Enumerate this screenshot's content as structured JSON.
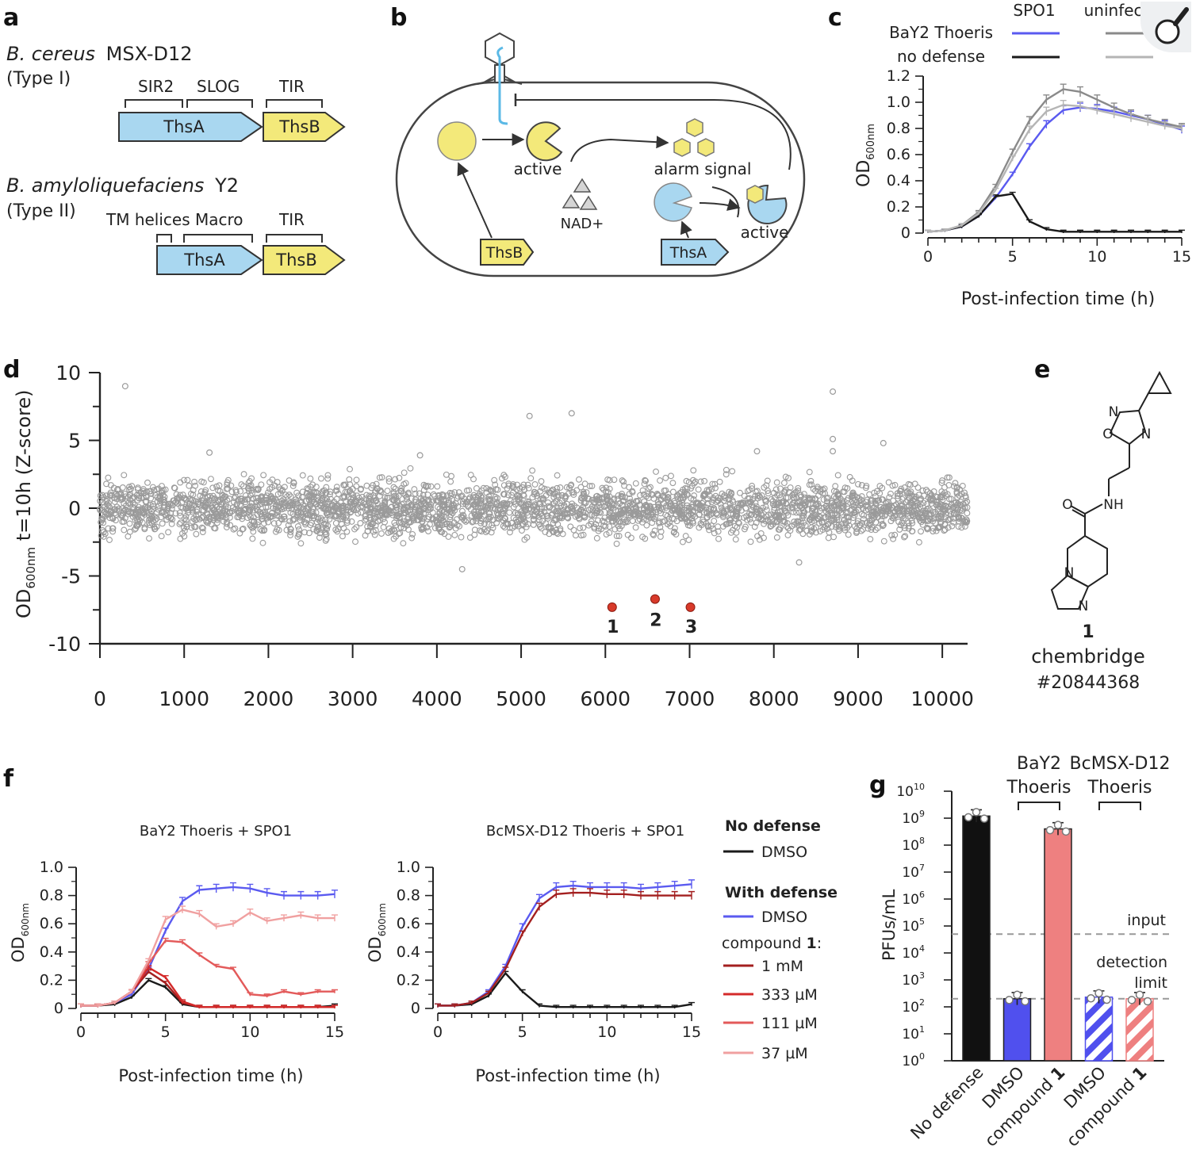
{
  "panels": {
    "a": {
      "label": "a",
      "org1_species": "B. cereus",
      "org1_strain": "MSX-D12",
      "org1_type": "(Type I)",
      "org1_domains": [
        "SIR2",
        "SLOG",
        "TIR"
      ],
      "org2_species": "B. amyloliquefaciens",
      "org2_strain": "Y2",
      "org2_type": "(Type II)",
      "org2_domains": [
        "TM helices",
        "Macro",
        "TIR"
      ],
      "gene_a": "ThsA",
      "gene_b": "ThsB"
    },
    "b": {
      "label": "b",
      "active_1": "active",
      "alarm": "alarm signal",
      "nad": "NAD+",
      "active_2": "active",
      "thsb": "ThsB",
      "thsa": "ThsA"
    },
    "c": {
      "label": "c",
      "legend_col1": "SPO1",
      "legend_col2": "uninfected",
      "legend_row1": "BaY2 Thoeris",
      "legend_row2": "no defense",
      "ylabel": "OD",
      "ylabel_sub": "600nm",
      "xlabel": "Post-infection time (h)"
    },
    "d": {
      "label": "d",
      "ylabel_main": "OD",
      "ylabel_sub": "600nm",
      "ylabel_rest": " t=10h (Z-score)",
      "hit_labels": [
        "1",
        "2",
        "3"
      ]
    },
    "e": {
      "label": "e",
      "compound_number": "1",
      "vendor": "chembridge",
      "catalog": "#20844368",
      "atoms": [
        "N",
        "O",
        "N",
        "NH",
        "O",
        "N",
        "N"
      ]
    },
    "f": {
      "label": "f",
      "title_left": "BaY2 Thoeris + SPO1",
      "title_right": "BcMSX-D12 Thoeris + SPO1",
      "ylabel": "OD",
      "ylabel_sub": "600nm",
      "xlabel": "Post-infection time (h)",
      "legend_head1": "No defense",
      "legend_dmso1": "DMSO",
      "legend_head2": "With defense",
      "legend_dmso2": "DMSO",
      "legend_compound": "compound",
      "legend_compound_num": "1",
      "legend_compound_colon": ":",
      "legend_doses": [
        "1 mM",
        "333 µM",
        "111 µM",
        "37 µM"
      ]
    },
    "g": {
      "label": "g",
      "group1_l1": "BaY2",
      "group1_l2": "Thoeris",
      "group2_l1": "BcMSX-D12",
      "group2_l2": "Thoeris",
      "ylabel": "PFUs/mL",
      "input_label": "input",
      "detect_l1": "detection",
      "detect_l2": "limit"
    }
  },
  "colors": {
    "dark": "#1a1a1a",
    "blue": "#5a5af0",
    "gray": "#8a8a8a",
    "lightgray": "#b5b5b5",
    "red_dark": "#a31f1f",
    "red": "#d42a2a",
    "red_mid": "#e35a5a",
    "red_light": "#f0a0a0",
    "ths_blue": "#a9d7f0",
    "ths_yellow": "#f3e97a"
  },
  "chart_data": [
    {
      "id": "c",
      "type": "line",
      "title": "",
      "xlabel": "Post-infection time (h)",
      "ylabel": "OD600nm",
      "xlim": [
        0,
        15
      ],
      "ylim": [
        0,
        1.2
      ],
      "xticks": [
        0,
        5,
        10,
        15
      ],
      "yticks": [
        0,
        0.2,
        0.4,
        0.6,
        0.8,
        1.0,
        1.2
      ],
      "x": [
        0,
        1,
        2,
        3,
        4,
        5,
        6,
        7,
        8,
        9,
        10,
        11,
        12,
        13,
        14,
        15
      ],
      "series": [
        {
          "name": "BaY2 Thoeris + SPO1",
          "color": "#5a5af0",
          "values": [
            0.01,
            0.02,
            0.05,
            0.13,
            0.27,
            0.45,
            0.66,
            0.83,
            0.94,
            0.96,
            0.95,
            0.93,
            0.9,
            0.87,
            0.83,
            0.79
          ]
        },
        {
          "name": "no defense + SPO1",
          "color": "#1a1a1a",
          "values": [
            0.01,
            0.02,
            0.05,
            0.13,
            0.28,
            0.3,
            0.09,
            0.03,
            0.01,
            0.01,
            0.01,
            0.01,
            0.01,
            0.01,
            0.01,
            0.01
          ]
        },
        {
          "name": "BaY2 Thoeris uninfected",
          "color": "#8a8a8a",
          "values": [
            0.01,
            0.02,
            0.06,
            0.16,
            0.36,
            0.62,
            0.86,
            1.02,
            1.1,
            1.08,
            1.02,
            0.96,
            0.91,
            0.87,
            0.84,
            0.81
          ]
        },
        {
          "name": "no defense uninfected",
          "color": "#b5b5b5",
          "values": [
            0.01,
            0.02,
            0.06,
            0.15,
            0.33,
            0.57,
            0.79,
            0.93,
            0.98,
            0.97,
            0.94,
            0.91,
            0.88,
            0.85,
            0.82,
            0.8
          ]
        }
      ]
    },
    {
      "id": "d",
      "type": "scatter",
      "xlabel": "",
      "ylabel": "OD600nm t=10h (Z-score)",
      "xlim": [
        0,
        10300
      ],
      "ylim": [
        -10,
        10
      ],
      "xticks": [
        0,
        1000,
        2000,
        3000,
        4000,
        5000,
        6000,
        7000,
        8000,
        9000,
        10000
      ],
      "yticks": [
        -10,
        -5,
        0,
        5,
        10
      ],
      "n_points": 10300,
      "bulk_range": [
        -3,
        3
      ],
      "outliers": [
        {
          "x": 300,
          "y": 9.0
        },
        {
          "x": 8700,
          "y": 8.6
        },
        {
          "x": 5600,
          "y": 7.0
        },
        {
          "x": 5100,
          "y": 6.8
        },
        {
          "x": 8700,
          "y": 5.1
        },
        {
          "x": 8700,
          "y": 4.2
        },
        {
          "x": 9300,
          "y": 4.8
        },
        {
          "x": 7800,
          "y": 4.2
        },
        {
          "x": 3800,
          "y": 3.9
        },
        {
          "x": 1300,
          "y": 4.1
        },
        {
          "x": 4300,
          "y": -4.5
        },
        {
          "x": 8300,
          "y": -4.0
        }
      ],
      "hits": [
        {
          "label": "1",
          "x": 6080,
          "y": -7.3
        },
        {
          "label": "2",
          "x": 6590,
          "y": -6.7
        },
        {
          "label": "3",
          "x": 7010,
          "y": -7.3
        }
      ]
    },
    {
      "id": "f-left",
      "type": "line",
      "title": "BaY2 Thoeris + SPO1",
      "xlabel": "Post-infection time (h)",
      "ylabel": "OD600nm",
      "xlim": [
        0,
        15
      ],
      "ylim": [
        0,
        1.0
      ],
      "xticks": [
        0,
        5,
        10,
        15
      ],
      "yticks": [
        0,
        0.2,
        0.4,
        0.6,
        0.8,
        1.0
      ],
      "x": [
        0,
        1,
        2,
        3,
        4,
        5,
        6,
        7,
        8,
        9,
        10,
        11,
        12,
        13,
        14,
        15
      ],
      "series": [
        {
          "name": "No defense DMSO",
          "color": "#1a1a1a",
          "values": [
            0.02,
            0.02,
            0.03,
            0.08,
            0.2,
            0.15,
            0.03,
            0.01,
            0.01,
            0.01,
            0.01,
            0.01,
            0.01,
            0.01,
            0.01,
            0.02
          ]
        },
        {
          "name": "With defense DMSO",
          "color": "#5a5af0",
          "values": [
            0.02,
            0.02,
            0.04,
            0.1,
            0.28,
            0.55,
            0.76,
            0.84,
            0.85,
            0.86,
            0.85,
            0.82,
            0.8,
            0.8,
            0.8,
            0.81
          ]
        },
        {
          "name": "compound 1 1 mM",
          "color": "#a31f1f",
          "values": [
            0.02,
            0.02,
            0.04,
            0.12,
            0.26,
            0.18,
            0.04,
            0.01,
            0.01,
            0.01,
            0.01,
            0.01,
            0.01,
            0.01,
            0.01,
            0.01
          ]
        },
        {
          "name": "compound 1 333 µM",
          "color": "#d42a2a",
          "values": [
            0.02,
            0.02,
            0.04,
            0.12,
            0.29,
            0.22,
            0.05,
            0.01,
            0.01,
            0.01,
            0.01,
            0.01,
            0.01,
            0.01,
            0.01,
            0.01
          ]
        },
        {
          "name": "compound 1 111 µM",
          "color": "#e35a5a",
          "values": [
            0.02,
            0.02,
            0.04,
            0.12,
            0.32,
            0.48,
            0.47,
            0.38,
            0.3,
            0.28,
            0.1,
            0.09,
            0.12,
            0.1,
            0.12,
            0.12
          ]
        },
        {
          "name": "compound 1 37 µM",
          "color": "#f0a0a0",
          "values": [
            0.02,
            0.02,
            0.04,
            0.12,
            0.34,
            0.63,
            0.7,
            0.67,
            0.58,
            0.6,
            0.68,
            0.62,
            0.64,
            0.66,
            0.64,
            0.64
          ]
        }
      ]
    },
    {
      "id": "f-right",
      "type": "line",
      "title": "BcMSX-D12 Thoeris + SPO1",
      "xlabel": "Post-infection time (h)",
      "ylabel": "OD600nm",
      "xlim": [
        0,
        15
      ],
      "ylim": [
        0,
        1.0
      ],
      "xticks": [
        0,
        5,
        10,
        15
      ],
      "yticks": [
        0,
        0.2,
        0.4,
        0.6,
        0.8,
        1.0
      ],
      "x": [
        0,
        1,
        2,
        3,
        4,
        5,
        6,
        7,
        8,
        9,
        10,
        11,
        12,
        13,
        14,
        15
      ],
      "series": [
        {
          "name": "No defense DMSO",
          "color": "#1a1a1a",
          "values": [
            0.02,
            0.02,
            0.03,
            0.09,
            0.25,
            0.12,
            0.02,
            0.01,
            0.01,
            0.01,
            0.01,
            0.01,
            0.01,
            0.01,
            0.01,
            0.03
          ]
        },
        {
          "name": "With defense DMSO",
          "color": "#5a5af0",
          "values": [
            0.02,
            0.02,
            0.04,
            0.12,
            0.3,
            0.58,
            0.78,
            0.86,
            0.87,
            0.86,
            0.86,
            0.86,
            0.85,
            0.86,
            0.87,
            0.88
          ]
        },
        {
          "name": "compound 1 1 mM",
          "color": "#a31f1f",
          "values": [
            0.02,
            0.02,
            0.04,
            0.11,
            0.28,
            0.53,
            0.72,
            0.81,
            0.82,
            0.82,
            0.81,
            0.81,
            0.8,
            0.8,
            0.8,
            0.8
          ]
        }
      ]
    },
    {
      "id": "g",
      "type": "bar",
      "yscale": "log",
      "ylabel": "PFUs/mL",
      "ylim": [
        1,
        10000000000
      ],
      "yticks_exponents": [
        0,
        1,
        2,
        3,
        4,
        5,
        6,
        7,
        8,
        9,
        10
      ],
      "categories": [
        "No defense",
        "DMSO",
        "compound 1",
        "DMSO",
        "compound 1"
      ],
      "category_bold_suffix": [
        "",
        "",
        "1",
        "",
        "1"
      ],
      "values": [
        1200000000,
        200,
        400000000,
        230,
        200
      ],
      "colors": [
        "#111111",
        "#5050ee",
        "#ee8080",
        "#5050ee",
        "#ee8080"
      ],
      "hatched": [
        false,
        false,
        false,
        true,
        true
      ],
      "groups": [
        {
          "name": "BaY2 Thoeris",
          "members": [
            1,
            2
          ]
        },
        {
          "name": "BcMSX-D12 Thoeris",
          "members": [
            3,
            4
          ]
        }
      ],
      "reference_lines": [
        {
          "name": "input",
          "value": 50000
        },
        {
          "name": "detection limit",
          "value": 200
        }
      ]
    }
  ]
}
